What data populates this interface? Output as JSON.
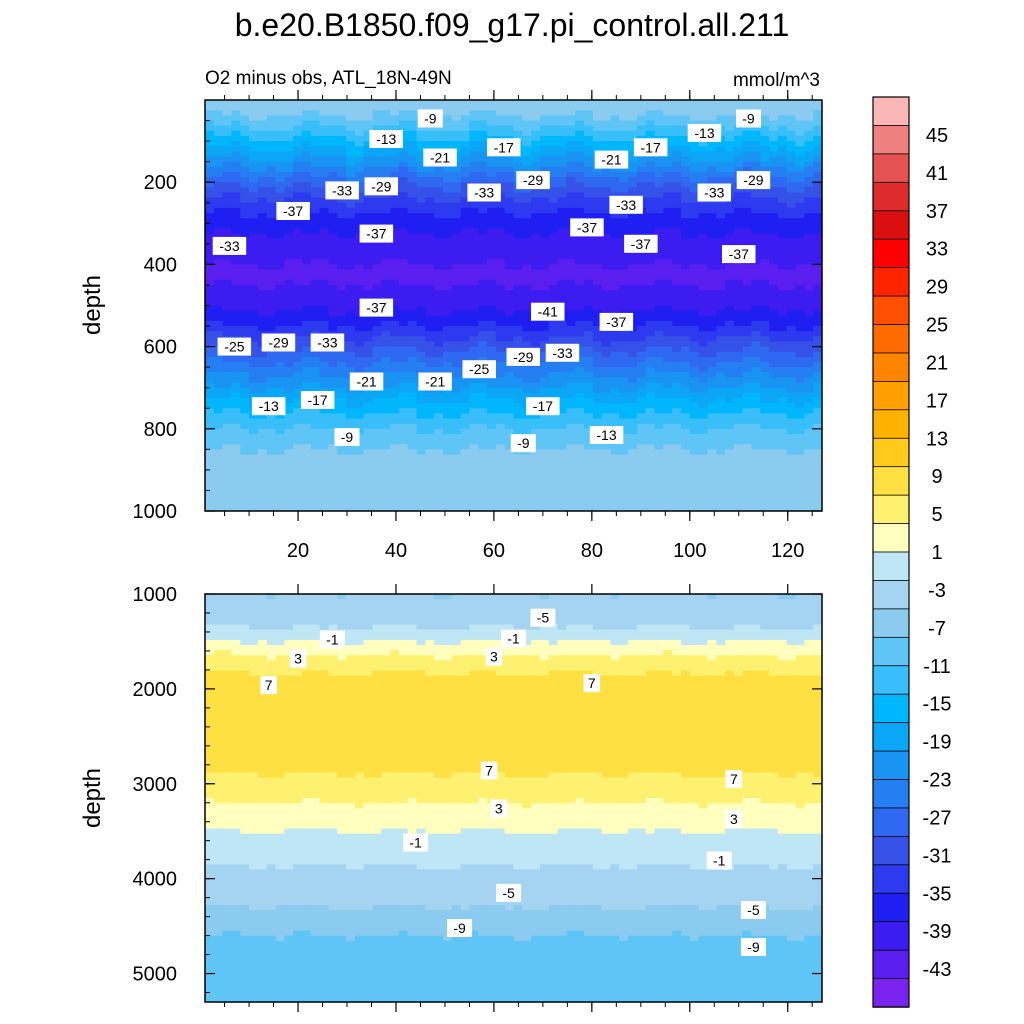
{
  "chart_data": [
    {
      "type": "heatmap",
      "panel": "upper",
      "title": "b.e20.B1850.f09_g17.pi_control.all.211",
      "subtitle_left": "O2 minus obs, ATL_18N-49N",
      "subtitle_right": "mmol/m^3",
      "xlabel": "",
      "ylabel": "depth",
      "xlim": [
        1,
        127
      ],
      "ylim": [
        0,
        1000
      ],
      "x_ticks": [
        "20",
        "40",
        "60",
        "80",
        "100",
        "120"
      ],
      "y_ticks": [
        "200",
        "400",
        "600",
        "800",
        "1000"
      ],
      "depth_profile_mean": [
        {
          "depth": 0,
          "value": -5
        },
        {
          "depth": 50,
          "value": -9
        },
        {
          "depth": 100,
          "value": -15
        },
        {
          "depth": 150,
          "value": -21
        },
        {
          "depth": 200,
          "value": -28
        },
        {
          "depth": 250,
          "value": -33
        },
        {
          "depth": 300,
          "value": -37
        },
        {
          "depth": 350,
          "value": -39
        },
        {
          "depth": 400,
          "value": -41
        },
        {
          "depth": 450,
          "value": -41
        },
        {
          "depth": 500,
          "value": -39
        },
        {
          "depth": 550,
          "value": -35
        },
        {
          "depth": 600,
          "value": -30
        },
        {
          "depth": 650,
          "value": -25
        },
        {
          "depth": 700,
          "value": -20
        },
        {
          "depth": 750,
          "value": -15
        },
        {
          "depth": 800,
          "value": -11
        },
        {
          "depth": 850,
          "value": -8
        },
        {
          "depth": 900,
          "value": -6
        },
        {
          "depth": 1000,
          "value": -5
        }
      ],
      "contour_labels": [
        {
          "text": "-9",
          "x": 47,
          "depth": 45
        },
        {
          "text": "-9",
          "x": 112,
          "depth": 45
        },
        {
          "text": "-13",
          "x": 38,
          "depth": 95
        },
        {
          "text": "-13",
          "x": 103,
          "depth": 80
        },
        {
          "text": "-17",
          "x": 62,
          "depth": 115
        },
        {
          "text": "-17",
          "x": 92,
          "depth": 115
        },
        {
          "text": "-21",
          "x": 49,
          "depth": 140
        },
        {
          "text": "-21",
          "x": 84,
          "depth": 145
        },
        {
          "text": "-29",
          "x": 68,
          "depth": 195
        },
        {
          "text": "-29",
          "x": 37,
          "depth": 210
        },
        {
          "text": "-29",
          "x": 113,
          "depth": 195
        },
        {
          "text": "-33",
          "x": 29,
          "depth": 220
        },
        {
          "text": "-33",
          "x": 58,
          "depth": 225
        },
        {
          "text": "-33",
          "x": 87,
          "depth": 255
        },
        {
          "text": "-33",
          "x": 105,
          "depth": 225
        },
        {
          "text": "-37",
          "x": 19,
          "depth": 270
        },
        {
          "text": "-37",
          "x": 36,
          "depth": 325
        },
        {
          "text": "-37",
          "x": 79,
          "depth": 310
        },
        {
          "text": "-37",
          "x": 110,
          "depth": 375
        },
        {
          "text": "-37",
          "x": 90,
          "depth": 350
        },
        {
          "text": "-33",
          "x": 6,
          "depth": 355
        },
        {
          "text": "-37",
          "x": 36,
          "depth": 505
        },
        {
          "text": "-41",
          "x": 71,
          "depth": 515
        },
        {
          "text": "-37",
          "x": 85,
          "depth": 540
        },
        {
          "text": "-25",
          "x": 7,
          "depth": 600
        },
        {
          "text": "-29",
          "x": 16,
          "depth": 590
        },
        {
          "text": "-33",
          "x": 26,
          "depth": 590
        },
        {
          "text": "-29",
          "x": 66,
          "depth": 625
        },
        {
          "text": "-33",
          "x": 74,
          "depth": 615
        },
        {
          "text": "-25",
          "x": 57,
          "depth": 655
        },
        {
          "text": "-21",
          "x": 34,
          "depth": 685
        },
        {
          "text": "-21",
          "x": 48,
          "depth": 685
        },
        {
          "text": "-17",
          "x": 24,
          "depth": 730
        },
        {
          "text": "-13",
          "x": 14,
          "depth": 745
        },
        {
          "text": "-17",
          "x": 70,
          "depth": 745
        },
        {
          "text": "-13",
          "x": 83,
          "depth": 815
        },
        {
          "text": "-9",
          "x": 30,
          "depth": 820
        },
        {
          "text": "-9",
          "x": 66,
          "depth": 835
        }
      ]
    },
    {
      "type": "heatmap",
      "panel": "lower",
      "xlabel": "",
      "ylabel": "depth",
      "xlim": [
        1,
        127
      ],
      "ylim": [
        1000,
        5300
      ],
      "y_ticks": [
        "1000",
        "2000",
        "3000",
        "4000",
        "5000"
      ],
      "depth_profile_mean": [
        {
          "depth": 1000,
          "value": -5
        },
        {
          "depth": 1300,
          "value": -3
        },
        {
          "depth": 1450,
          "value": 0
        },
        {
          "depth": 1650,
          "value": 4
        },
        {
          "depth": 1900,
          "value": 8
        },
        {
          "depth": 2300,
          "value": 10
        },
        {
          "depth": 2700,
          "value": 9
        },
        {
          "depth": 3000,
          "value": 6
        },
        {
          "depth": 3300,
          "value": 3
        },
        {
          "depth": 3600,
          "value": 0
        },
        {
          "depth": 4000,
          "value": -3
        },
        {
          "depth": 4300,
          "value": -5
        },
        {
          "depth": 4600,
          "value": -8
        },
        {
          "depth": 5000,
          "value": -10
        },
        {
          "depth": 5300,
          "value": -9
        }
      ],
      "contour_labels": [
        {
          "text": "-5",
          "x": 70,
          "depth": 1250
        },
        {
          "text": "-1",
          "x": 27,
          "depth": 1480
        },
        {
          "text": "-1",
          "x": 64,
          "depth": 1470
        },
        {
          "text": "3",
          "x": 20,
          "depth": 1680
        },
        {
          "text": "3",
          "x": 60,
          "depth": 1660
        },
        {
          "text": "7",
          "x": 14,
          "depth": 1960
        },
        {
          "text": "7",
          "x": 80,
          "depth": 1940
        },
        {
          "text": "7",
          "x": 59,
          "depth": 2860
        },
        {
          "text": "7",
          "x": 109,
          "depth": 2950
        },
        {
          "text": "3",
          "x": 61,
          "depth": 3260
        },
        {
          "text": "3",
          "x": 109,
          "depth": 3370
        },
        {
          "text": "-1",
          "x": 44,
          "depth": 3620
        },
        {
          "text": "-1",
          "x": 106,
          "depth": 3810
        },
        {
          "text": "-5",
          "x": 63,
          "depth": 4150
        },
        {
          "text": "-5",
          "x": 113,
          "depth": 4330
        },
        {
          "text": "-9",
          "x": 53,
          "depth": 4520
        },
        {
          "text": "-9",
          "x": 113,
          "depth": 4720
        }
      ]
    }
  ],
  "colorbar": {
    "labels": [
      "45",
      "41",
      "37",
      "33",
      "29",
      "25",
      "21",
      "17",
      "13",
      "9",
      "5",
      "1",
      "-3",
      "-7",
      "-11",
      "-15",
      "-19",
      "-23",
      "-27",
      "-31",
      "-35",
      "-39",
      "-43"
    ],
    "colors": [
      "#fbb6b6",
      "#ee8080",
      "#e45252",
      "#de2c2c",
      "#da1010",
      "#ff0000",
      "#ff2400",
      "#ff4f00",
      "#ff6a00",
      "#ff8500",
      "#ff9f00",
      "#ffb300",
      "#ffca1c",
      "#ffe043",
      "#fff170",
      "#ffffbe",
      "#bfe6f5",
      "#a4d4f2",
      "#8ccbf0",
      "#5fc5f6",
      "#38bef8",
      "#00b6fc",
      "#0ca6f6",
      "#1994f5",
      "#257ff2",
      "#2f69f1",
      "#3551e8",
      "#2d3aef",
      "#1f1ff2",
      "#3c1cf0",
      "#5a1ef0",
      "#7a22ee"
    ]
  }
}
